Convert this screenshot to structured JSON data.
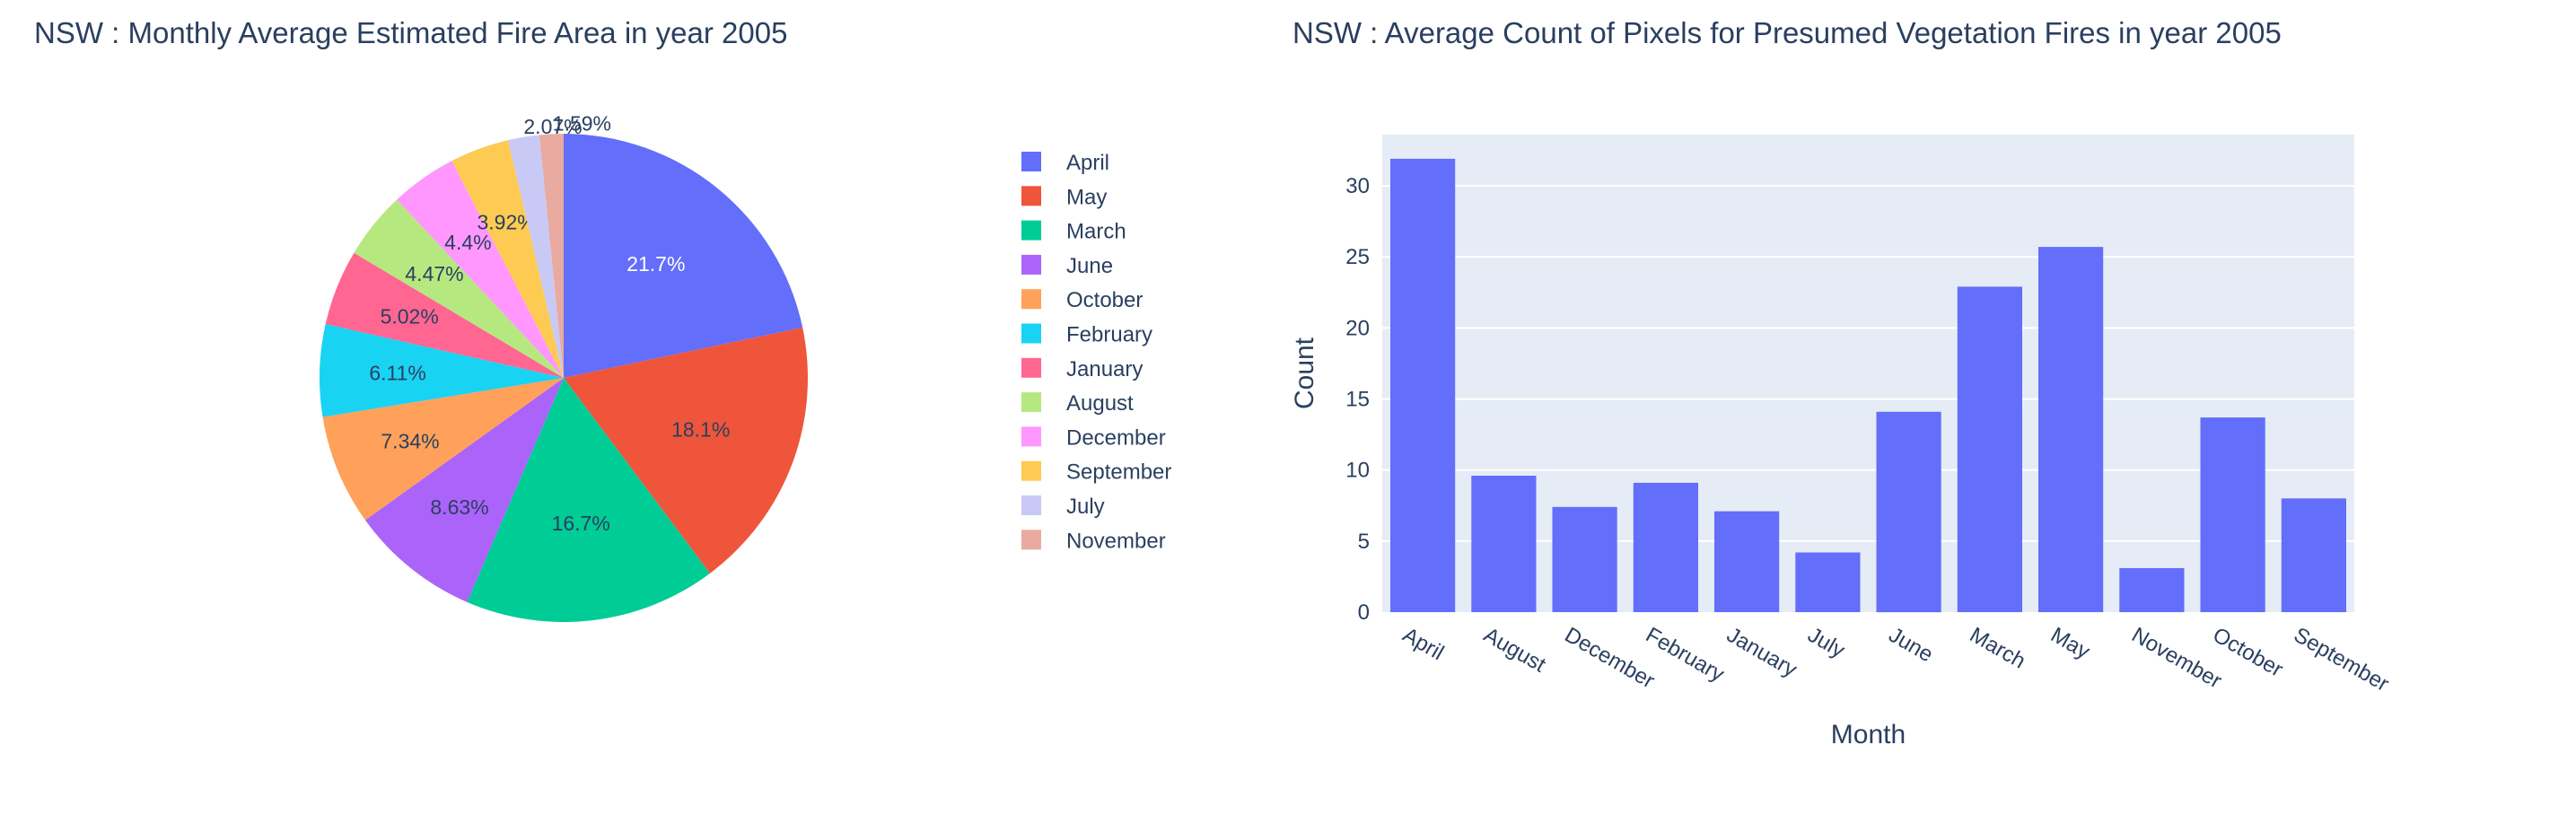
{
  "chart_data": [
    {
      "type": "pie",
      "title": "NSW : Monthly Average Estimated Fire Area in year 2005",
      "labels": [
        "April",
        "May",
        "March",
        "June",
        "October",
        "February",
        "January",
        "August",
        "December",
        "September",
        "July",
        "November"
      ],
      "values": [
        21.7,
        18.1,
        16.7,
        8.63,
        7.34,
        6.11,
        5.02,
        4.47,
        4.4,
        3.92,
        2.07,
        1.59
      ],
      "text_labels": [
        "21.7%",
        "18.1%",
        "16.7%",
        "8.63%",
        "7.34%",
        "6.11%",
        "5.02%",
        "4.47%",
        "4.4%",
        "3.92%",
        "2.07%",
        "1.59%"
      ],
      "colors": [
        "#636efa",
        "#EF553B",
        "#00cc96",
        "#ab63fa",
        "#FFA15A",
        "#19d3f3",
        "#FF6692",
        "#B6E880",
        "#FF97FF",
        "#FECB52",
        "#c8c9f5",
        "#e9aaa0"
      ],
      "legend_position": "right",
      "direction": "clockwise",
      "start": "top"
    },
    {
      "type": "bar",
      "title": "NSW : Average Count of Pixels for Presumed Vegetation Fires in year 2005",
      "categories": [
        "April",
        "August",
        "December",
        "February",
        "January",
        "July",
        "June",
        "March",
        "May",
        "November",
        "October",
        "September"
      ],
      "values": [
        31.9,
        9.6,
        7.4,
        9.1,
        7.1,
        4.2,
        14.1,
        22.9,
        25.7,
        3.1,
        13.7,
        8.0
      ],
      "xlabel": "Month",
      "ylabel": "Count",
      "yticks": [
        0,
        5,
        10,
        15,
        20,
        25,
        30
      ],
      "ylim": [
        0,
        33.6
      ],
      "grid": true,
      "bar_color": "#636efa",
      "plot_background": "#e5ecf6"
    }
  ]
}
